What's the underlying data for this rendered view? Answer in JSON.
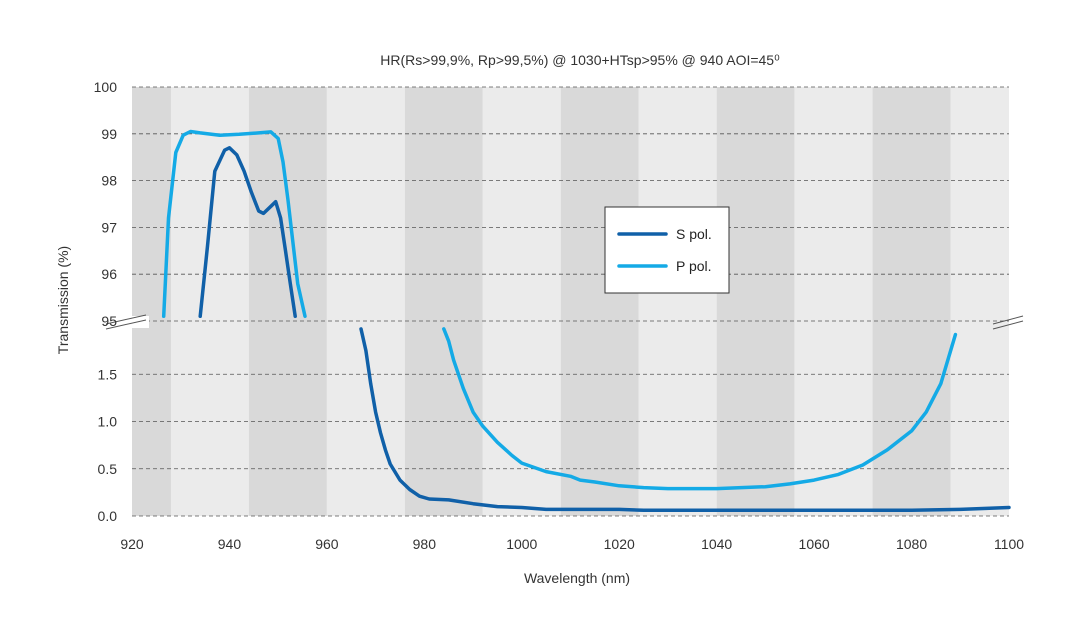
{
  "chart_data": {
    "type": "line",
    "title": "HR(Rs>99,9%, Rp>99,5%) @ 1030+HTsp>95% @ 940 AOI=45⁰",
    "xlabel": "Wavelength (nm)",
    "ylabel": "Transmission (%)",
    "xlim": [
      920,
      1100
    ],
    "x_ticks": [
      "920",
      "940",
      "960",
      "980",
      "1000",
      "1020",
      "1040",
      "1060",
      "1080",
      "1100"
    ],
    "y_ticks_upper": [
      "95",
      "96",
      "97",
      "98",
      "99",
      "100"
    ],
    "y_ticks_lower": [
      "0.0",
      "0.5",
      "1.0",
      "1.5"
    ],
    "y_axis_broken": true,
    "upper_segment_ylim": [
      95,
      100
    ],
    "lower_segment_ylim": [
      0,
      2
    ],
    "grid": "dashed horizontal",
    "legend_position": "center-right",
    "colors": {
      "s_pol": "#1060a8",
      "p_pol": "#14aae6",
      "band_dark": "#d9d9d9",
      "band_light": "#ebebeb"
    },
    "series": [
      {
        "name": "S pol.",
        "segments": [
          [
            [
              934,
              95.1
            ],
            [
              935.5,
              96.6
            ],
            [
              937,
              98.2
            ],
            [
              939,
              98.65
            ],
            [
              940,
              98.7
            ],
            [
              941.5,
              98.55
            ],
            [
              943,
              98.2
            ],
            [
              944.5,
              97.75
            ],
            [
              946,
              97.35
            ],
            [
              947,
              97.3
            ],
            [
              948.5,
              97.45
            ],
            [
              949.5,
              97.55
            ],
            [
              950.5,
              97.2
            ],
            [
              951.5,
              96.5
            ],
            [
              952.5,
              95.8
            ],
            [
              953.5,
              95.1
            ]
          ],
          [
            [
              967,
              1.98
            ],
            [
              968,
              1.75
            ],
            [
              969,
              1.4
            ],
            [
              970,
              1.1
            ],
            [
              971,
              0.88
            ],
            [
              972,
              0.7
            ],
            [
              973,
              0.55
            ],
            [
              975,
              0.38
            ],
            [
              977,
              0.28
            ],
            [
              979,
              0.21
            ],
            [
              981,
              0.18
            ],
            [
              985,
              0.17
            ],
            [
              990,
              0.13
            ],
            [
              995,
              0.1
            ],
            [
              1000,
              0.09
            ],
            [
              1005,
              0.07
            ],
            [
              1010,
              0.07
            ],
            [
              1015,
              0.07
            ],
            [
              1020,
              0.07
            ],
            [
              1025,
              0.06
            ],
            [
              1030,
              0.06
            ],
            [
              1040,
              0.06
            ],
            [
              1050,
              0.06
            ],
            [
              1060,
              0.06
            ],
            [
              1070,
              0.06
            ],
            [
              1080,
              0.06
            ],
            [
              1090,
              0.07
            ],
            [
              1100,
              0.09
            ]
          ]
        ]
      },
      {
        "name": "P pol.",
        "segments": [
          [
            [
              926.5,
              95.1
            ],
            [
              927.5,
              97.2
            ],
            [
              929,
              98.6
            ],
            [
              930.5,
              98.97
            ],
            [
              932,
              99.05
            ],
            [
              934,
              99.02
            ],
            [
              938,
              98.97
            ],
            [
              942,
              98.99
            ],
            [
              946,
              99.02
            ],
            [
              948.5,
              99.04
            ],
            [
              950,
              98.9
            ],
            [
              951,
              98.4
            ],
            [
              952,
              97.6
            ],
            [
              953,
              96.7
            ],
            [
              954,
              95.8
            ],
            [
              955.5,
              95.1
            ]
          ],
          [
            [
              984,
              1.98
            ],
            [
              985,
              1.85
            ],
            [
              986,
              1.65
            ],
            [
              988,
              1.35
            ],
            [
              990,
              1.1
            ],
            [
              992,
              0.95
            ],
            [
              995,
              0.78
            ],
            [
              998,
              0.64
            ],
            [
              1000,
              0.56
            ],
            [
              1005,
              0.47
            ],
            [
              1010,
              0.42
            ],
            [
              1012,
              0.38
            ],
            [
              1015,
              0.36
            ],
            [
              1020,
              0.32
            ],
            [
              1025,
              0.3
            ],
            [
              1030,
              0.29
            ],
            [
              1040,
              0.29
            ],
            [
              1050,
              0.31
            ],
            [
              1055,
              0.34
            ],
            [
              1060,
              0.38
            ],
            [
              1065,
              0.44
            ],
            [
              1070,
              0.54
            ],
            [
              1075,
              0.7
            ],
            [
              1080,
              0.9
            ],
            [
              1083,
              1.1
            ],
            [
              1086,
              1.4
            ],
            [
              1089,
              1.92
            ]
          ]
        ]
      }
    ]
  }
}
